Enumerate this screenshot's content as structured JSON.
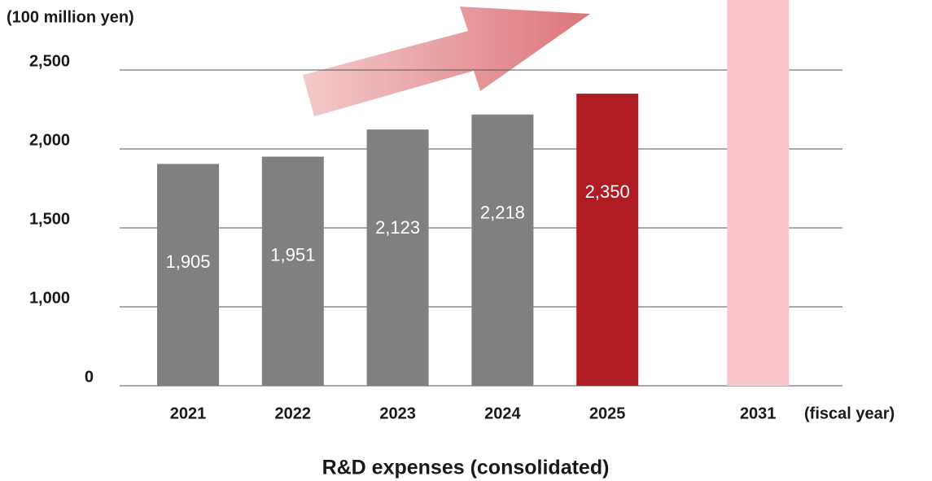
{
  "chart_data": {
    "type": "bar",
    "title": "R&D expenses (consolidated)",
    "y_axis_label": "(100 million yen)",
    "x_axis_label": "(fiscal year)",
    "categories": [
      "2021",
      "2022",
      "2023",
      "2024",
      "2025",
      "2031"
    ],
    "values": [
      1905,
      1951,
      2123,
      2218,
      2350,
      3000
    ],
    "value_labels": [
      "1,905",
      "1,951",
      "2,123",
      "2,218",
      "2,350",
      null
    ],
    "colors": [
      "#808080",
      "#808080",
      "#808080",
      "#808080",
      "#b01c24",
      "#f9c6cc"
    ],
    "ylim": [
      0,
      2950
    ],
    "yticks": [
      0,
      {
        "value": 1000,
        "label": "1,000"
      },
      {
        "value": 1500,
        "label": "1,500"
      },
      {
        "value": 2000,
        "label": "2,000"
      },
      {
        "value": 2500,
        "label": "2,500"
      }
    ],
    "y_axis_break": true,
    "grid": true
  }
}
